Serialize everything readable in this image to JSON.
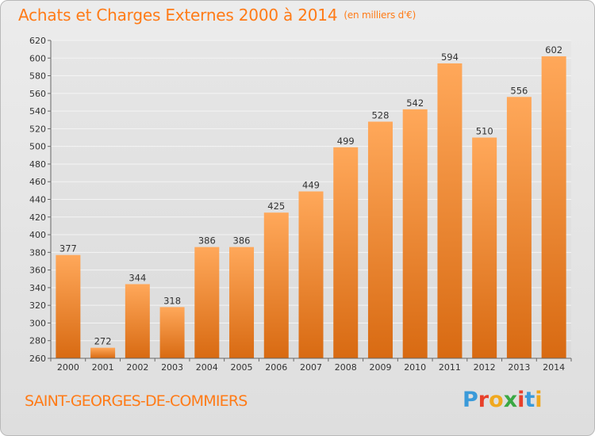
{
  "header": {
    "title": "Achats et Charges Externes 2000 à 2014",
    "subtitle": "(en milliers d'€)"
  },
  "footer": {
    "commune": "SAINT-GEORGES-DE-COMMIERS",
    "logo_letters": [
      "P",
      "r",
      "o",
      "x",
      "i",
      "t",
      "i"
    ],
    "logo_colors": [
      "#3a9ad9",
      "#e8402a",
      "#f0a81e",
      "#3aa843",
      "#e8402a",
      "#3a9ad9",
      "#f0a81e"
    ]
  },
  "colors": {
    "title": "#ff7b17",
    "bar_light": "#ffa85a",
    "bar_dark": "#d86a12"
  },
  "chart_data": {
    "type": "bar",
    "categories": [
      "2000",
      "2001",
      "2002",
      "2003",
      "2004",
      "2005",
      "2006",
      "2007",
      "2008",
      "2009",
      "2010",
      "2011",
      "2012",
      "2013",
      "2014"
    ],
    "values": [
      377,
      272,
      344,
      318,
      386,
      386,
      425,
      449,
      499,
      528,
      542,
      594,
      510,
      556,
      602
    ],
    "title": "Achats et Charges Externes 2000 à 2014",
    "xlabel": "",
    "ylabel": "",
    "ylim": [
      260,
      620
    ],
    "yticks": [
      260,
      280,
      300,
      320,
      340,
      360,
      380,
      400,
      420,
      440,
      460,
      480,
      500,
      520,
      540,
      560,
      580,
      600,
      620
    ],
    "grid": true,
    "legend": "none"
  }
}
